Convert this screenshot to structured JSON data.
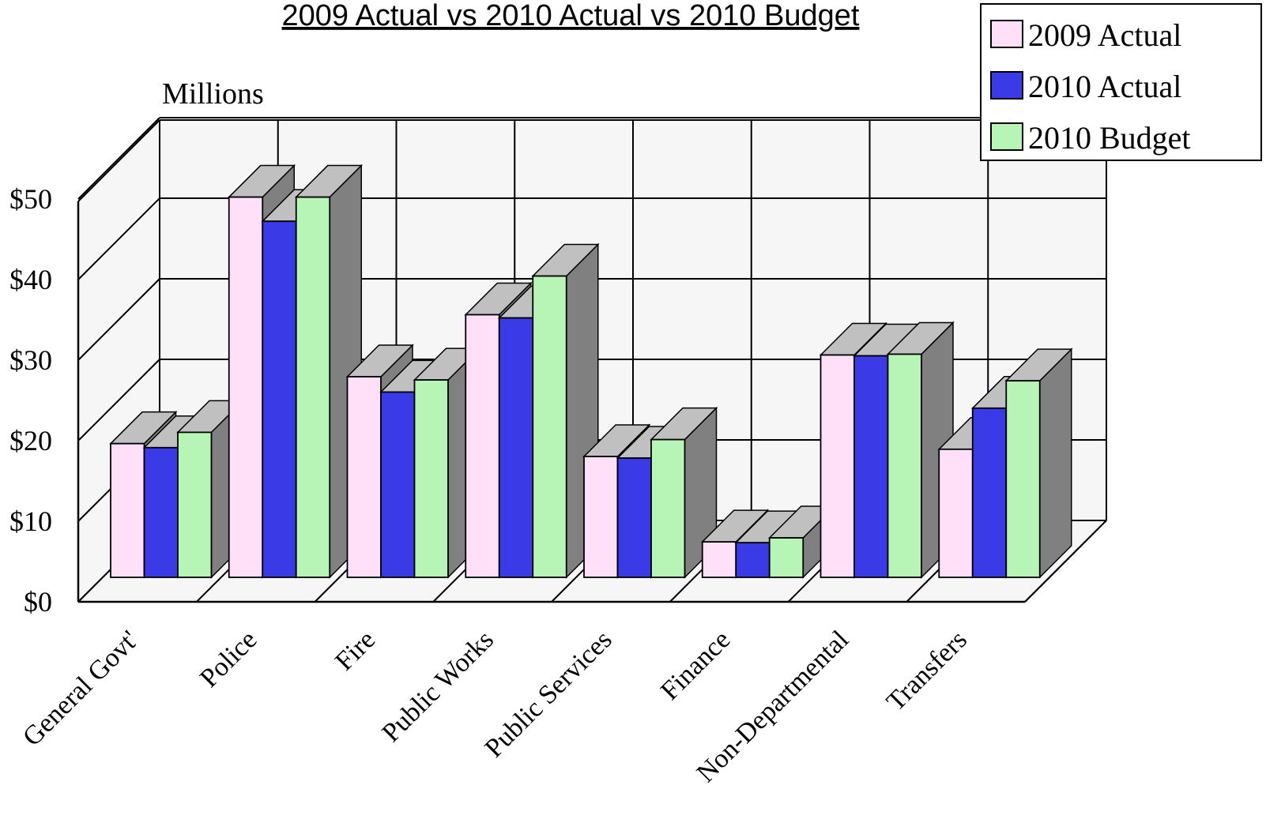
{
  "colors": {
    "background": "#ffffff",
    "plot_back": "#f6f6f6",
    "grid": "#000000",
    "side_face": "#808080",
    "top_face": "#c0c0c0",
    "series_2009_actual": "#ffe0f8",
    "series_2010_actual": "#3a3ae6",
    "series_2010_budget": "#b6f5b6"
  },
  "chart_data": {
    "type": "bar",
    "title": "2009 Actual vs 2010 Actual vs 2010 Budget",
    "units_label": "Millions",
    "xlabel": "",
    "ylabel": "",
    "ylim": [
      0,
      50
    ],
    "yticks": [
      0,
      10,
      20,
      30,
      40,
      50
    ],
    "ytick_labels": [
      "$0",
      "$10",
      "$20",
      "$30",
      "$40",
      "$50"
    ],
    "grid": true,
    "three_d": true,
    "legend_position": "top-right",
    "categories": [
      "General Govt'",
      "Police",
      "Fire",
      "Public Works",
      "Public Services",
      "Finance",
      "Non-Departmental",
      "Transfers"
    ],
    "series": [
      {
        "name": "2009 Actual",
        "color": "#ffe0f8",
        "values": [
          16.6,
          47.2,
          24.9,
          32.6,
          15.0,
          4.4,
          27.6,
          15.9
        ]
      },
      {
        "name": "2010 Actual",
        "color": "#3a3ae6",
        "values": [
          16.1,
          44.2,
          23.0,
          32.2,
          14.8,
          4.3,
          27.5,
          21.0
        ]
      },
      {
        "name": "2010 Budget",
        "color": "#b6f5b6",
        "values": [
          18.0,
          47.2,
          24.5,
          37.4,
          17.1,
          4.9,
          27.7,
          24.4
        ]
      }
    ]
  }
}
